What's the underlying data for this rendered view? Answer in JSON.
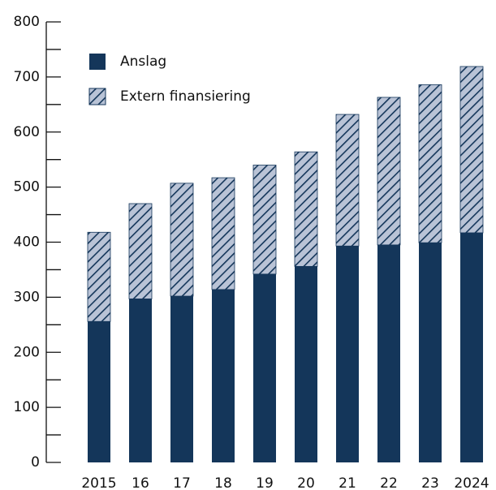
{
  "chart_data": {
    "type": "stacked_bar",
    "categories": [
      "2015",
      "16",
      "17",
      "18",
      "19",
      "20",
      "21",
      "22",
      "23",
      "2024"
    ],
    "series": [
      {
        "name": "Anslag",
        "color": "#14365a",
        "values": [
          256,
          297,
          302,
          314,
          342,
          356,
          393,
          395,
          399,
          417
        ]
      },
      {
        "name": "Extern finansiering",
        "color": "#b9c3d6",
        "hatch": true,
        "values": [
          162,
          173,
          205,
          203,
          198,
          208,
          239,
          268,
          287,
          302
        ]
      }
    ],
    "ylim": [
      0,
      800
    ],
    "yticks": [
      0,
      100,
      200,
      300,
      400,
      500,
      600,
      700,
      800
    ],
    "yminorticks": [
      50,
      150,
      250,
      350,
      450,
      550,
      650,
      750
    ],
    "legend": "upper-left"
  }
}
